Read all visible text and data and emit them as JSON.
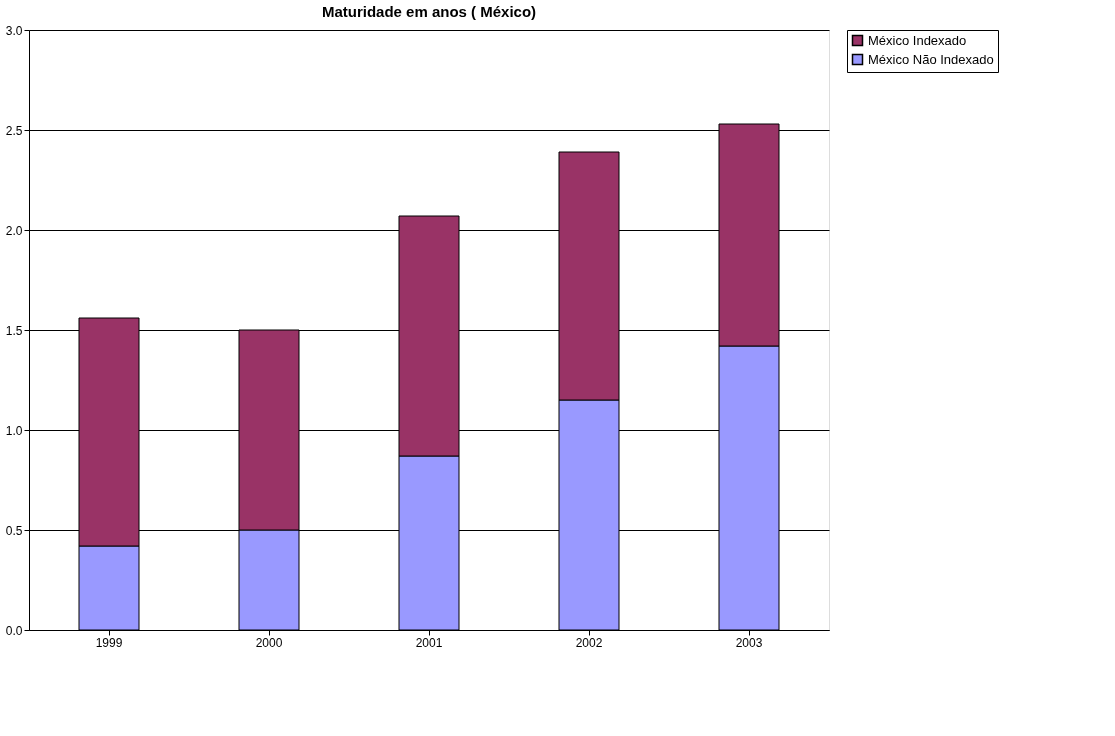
{
  "chart_data": {
    "type": "bar",
    "title": "Maturidade em anos ( México)",
    "stacked": true,
    "categories": [
      "1999",
      "2000",
      "2001",
      "2002",
      "2003"
    ],
    "series": [
      {
        "name": "México Não Indexado",
        "color": "#9999ff",
        "values": [
          0.42,
          0.5,
          0.87,
          1.15,
          1.42
        ]
      },
      {
        "name": "México Indexado",
        "color": "#993366",
        "values": [
          1.14,
          1.0,
          1.2,
          1.24,
          1.11
        ]
      }
    ],
    "ylim": [
      0,
      3
    ],
    "yticks": [
      {
        "value": 0,
        "label": "0.0"
      },
      {
        "value": 0.5,
        "label": "0.5"
      },
      {
        "value": 1,
        "label": "1.0"
      },
      {
        "value": 1.5,
        "label": "1.5"
      },
      {
        "value": 2,
        "label": "2.0"
      },
      {
        "value": 2.5,
        "label": "2.5"
      },
      {
        "value": 3,
        "label": "3.0"
      }
    ],
    "grid": "y",
    "legend": "right"
  }
}
